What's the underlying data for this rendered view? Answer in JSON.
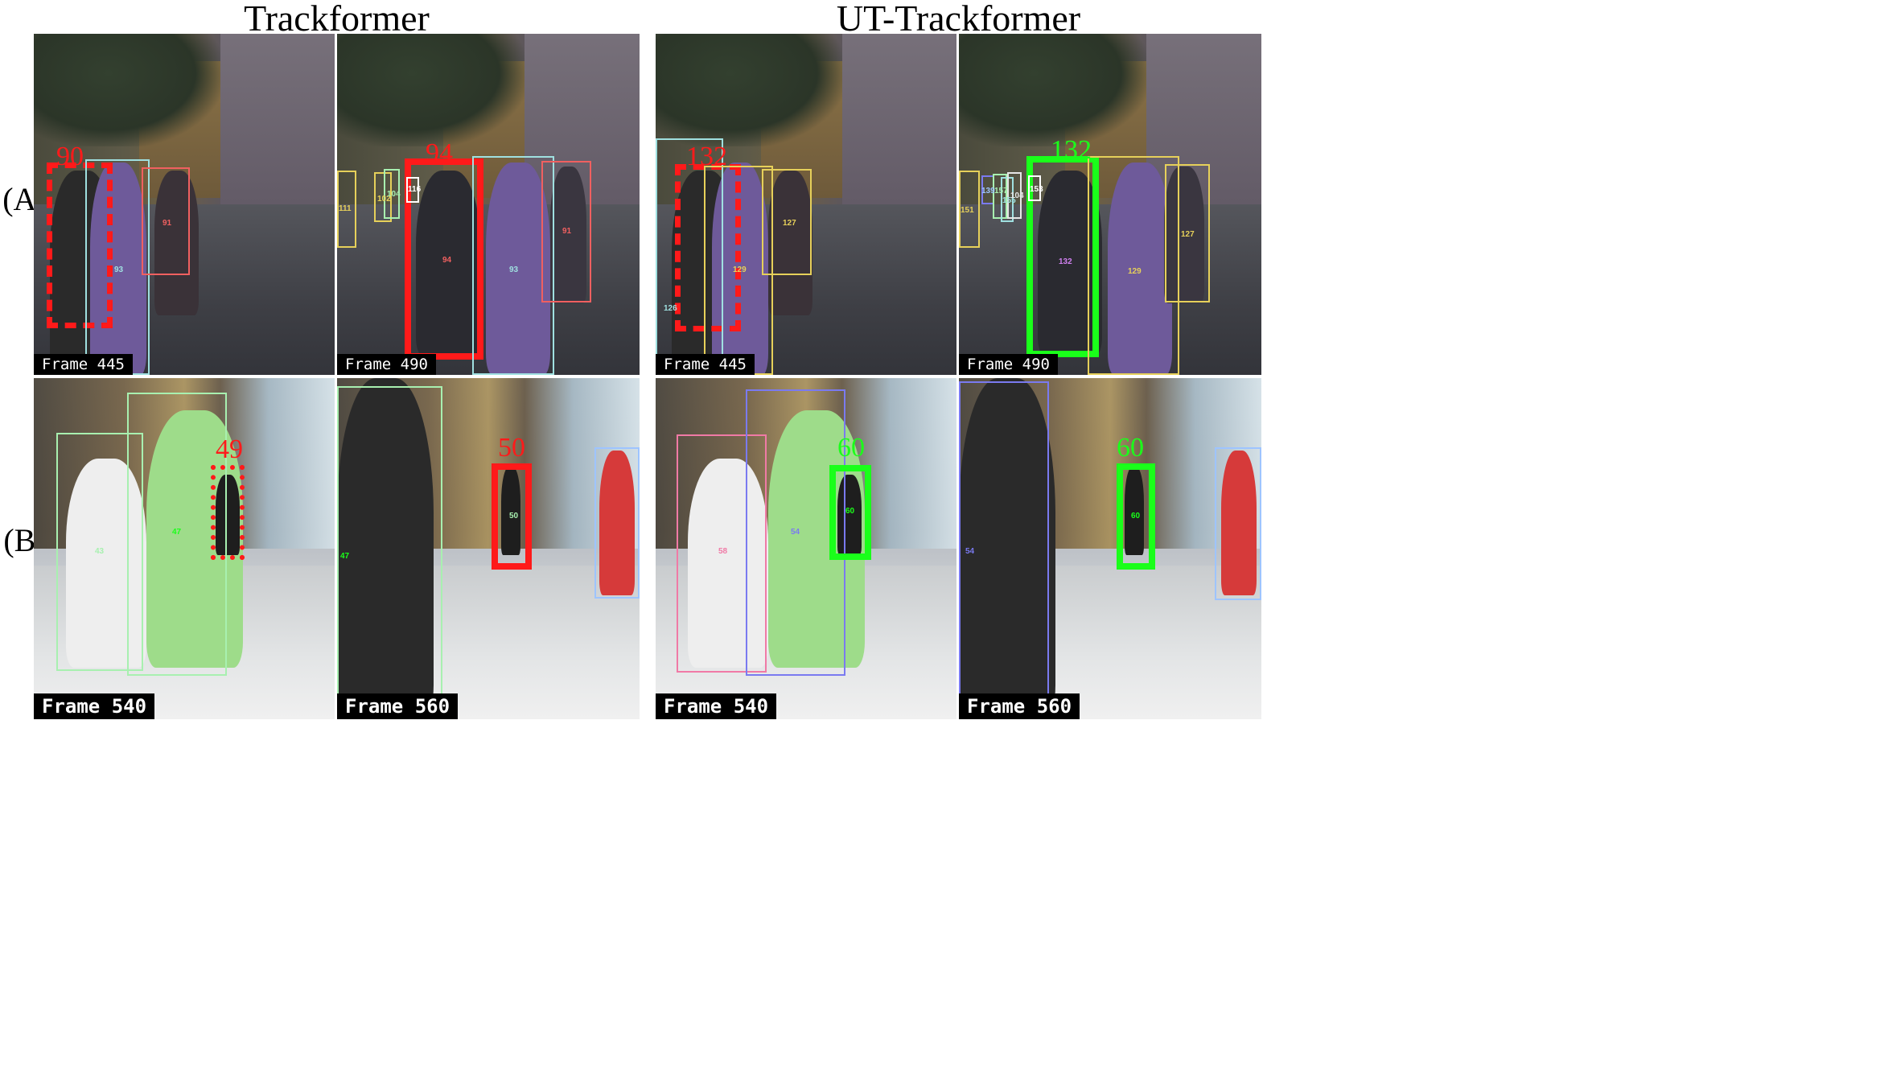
{
  "columns": {
    "left_title": "Trackformer",
    "right_title": "UT-Trackformer"
  },
  "rows": {
    "a_label": "(A)",
    "b_label": "(B)"
  },
  "colors": {
    "red": "#ff1a1a",
    "green": "#1aff1a",
    "cyan": "#9fe0e0",
    "yellow": "#e6d05a",
    "pink": "#f07aa6",
    "lightgreen": "#a8f0b0",
    "blue": "#7a7af0",
    "lightblue": "#9ec4ff"
  },
  "panels": {
    "a1": {
      "frame": "Frame 445",
      "big_id": "90",
      "ids": {
        "t93": "93",
        "t91": "91"
      }
    },
    "a2": {
      "frame": "Frame 490",
      "big_id": "94",
      "ids": {
        "t94": "94",
        "t93": "93",
        "t91": "91",
        "t111": "111",
        "t102": "102",
        "t104": "104",
        "t116": "116"
      }
    },
    "a3": {
      "frame": "Frame 445",
      "big_id": "132",
      "ids": {
        "t127": "127",
        "t129": "129",
        "t126": "126"
      }
    },
    "a4": {
      "frame": "Frame 490",
      "big_id": "132",
      "ids": {
        "t132": "132",
        "t129": "129",
        "t127": "127",
        "t151": "151",
        "t139": "139",
        "t157": "157",
        "t155": "155",
        "t153": "153",
        "t104": "104"
      }
    },
    "b1": {
      "frame": "Frame 540",
      "big_id": "49",
      "ids": {
        "t43": "43",
        "t47": "47"
      }
    },
    "b2": {
      "frame": "Frame 560",
      "big_id": "50",
      "ids": {
        "t47": "47",
        "t50": "50"
      }
    },
    "b3": {
      "frame": "Frame 540",
      "big_id": "60",
      "ids": {
        "t58": "58",
        "t54": "54",
        "t60": "60"
      }
    },
    "b4": {
      "frame": "Frame 560",
      "big_id": "60",
      "ids": {
        "t54": "54",
        "t60": "60"
      }
    }
  }
}
